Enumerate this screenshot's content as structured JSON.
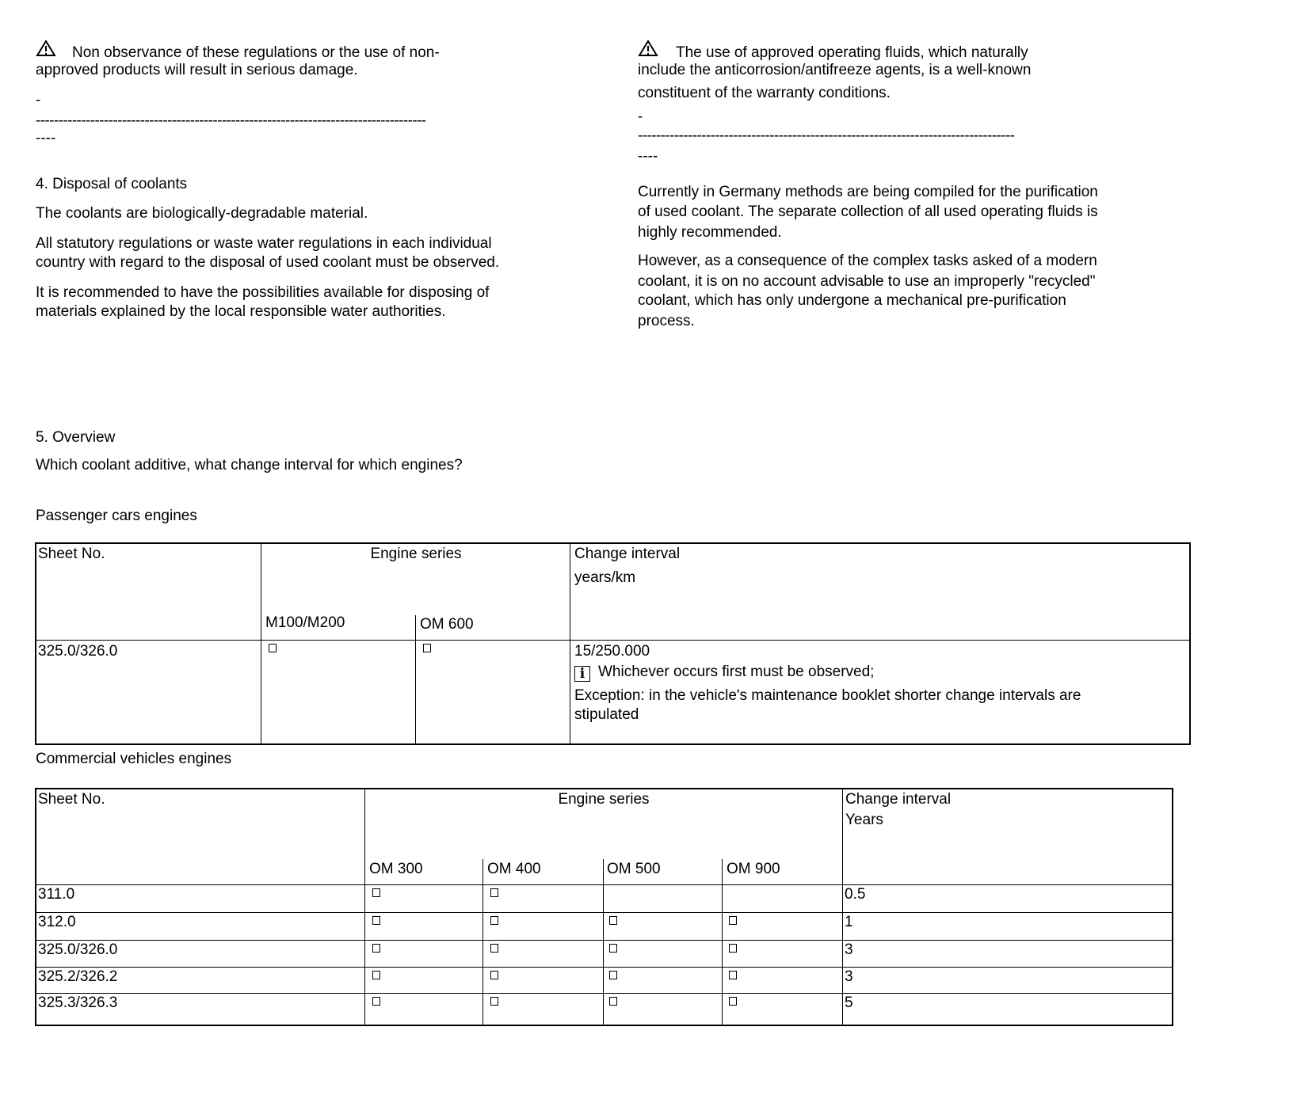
{
  "left": {
    "warning": [
      "Non observance of these regulations or the use of non-",
      "approved products will result in serious damage."
    ],
    "sep": [
      "-",
      "--------------------------------------------------------------------------------------",
      "----"
    ],
    "heading": "4. Disposal of coolants",
    "paragraphs": [
      [
        "The coolants are biologically-degradable material."
      ],
      [
        "All statutory regulations or waste water regulations in each individual",
        "country with regard to the disposal of used coolant must be observed."
      ],
      [
        "It is recommended to have the possibilities available for disposing of",
        "materials explained by the local responsible water authorities."
      ]
    ]
  },
  "right": {
    "warning": [
      "The use of approved operating fluids, which naturally",
      "include the anticorrosion/antifreeze agents, is a well-known",
      "constituent of the warranty conditions."
    ],
    "sep": [
      "-",
      "-----------------------------------------------------------------------------------",
      "----"
    ],
    "paragraphs": [
      [
        "Currently in Germany methods are being compiled for the purification",
        "of used coolant. The separate collection of all used operating fluids is",
        "highly recommended."
      ],
      [
        "However, as a consequence of the complex tasks asked of a modern",
        "coolant, it is on no account advisable to use an improperly \"recycled\"",
        "coolant, which has only undergone a mechanical pre-purification",
        "process."
      ]
    ]
  },
  "overview": {
    "heading": "5. Overview",
    "question": "Which coolant additive, what change interval for which engines?"
  },
  "passenger": {
    "title": "Passenger cars engines",
    "headers": {
      "sheet": "Sheet No.",
      "engine": "Engine series",
      "interval": [
        "Change interval",
        "years/km"
      ],
      "engines": [
        "M100/M200",
        "OM 600"
      ]
    },
    "row": {
      "sheet": "325.0/326.0",
      "checks": [
        true,
        true
      ],
      "interval": "15/250.000",
      "note": "Whichever occurs first must be observed;",
      "exception": [
        "Exception: in the vehicle's maintenance booklet shorter change intervals are",
        "stipulated"
      ]
    }
  },
  "commercial": {
    "title": "Commercial vehicles engines",
    "headers": {
      "sheet": "Sheet No.",
      "engine": "Engine series",
      "interval": [
        "Change interval",
        "Years"
      ],
      "engines": [
        "OM 300",
        "OM 400",
        "OM 500",
        "OM 900"
      ]
    },
    "rows": [
      {
        "sheet": "311.0",
        "checks": [
          true,
          true,
          false,
          false
        ],
        "interval": "0.5"
      },
      {
        "sheet": "312.0",
        "checks": [
          true,
          true,
          true,
          true
        ],
        "interval": "1"
      },
      {
        "sheet": "325.0/326.0",
        "checks": [
          true,
          true,
          true,
          true
        ],
        "interval": "3"
      },
      {
        "sheet": "325.2/326.2",
        "checks": [
          true,
          true,
          true,
          true
        ],
        "interval": "3"
      },
      {
        "sheet": "325.3/326.3",
        "checks": [
          true,
          true,
          true,
          true
        ],
        "interval": "5"
      }
    ]
  }
}
